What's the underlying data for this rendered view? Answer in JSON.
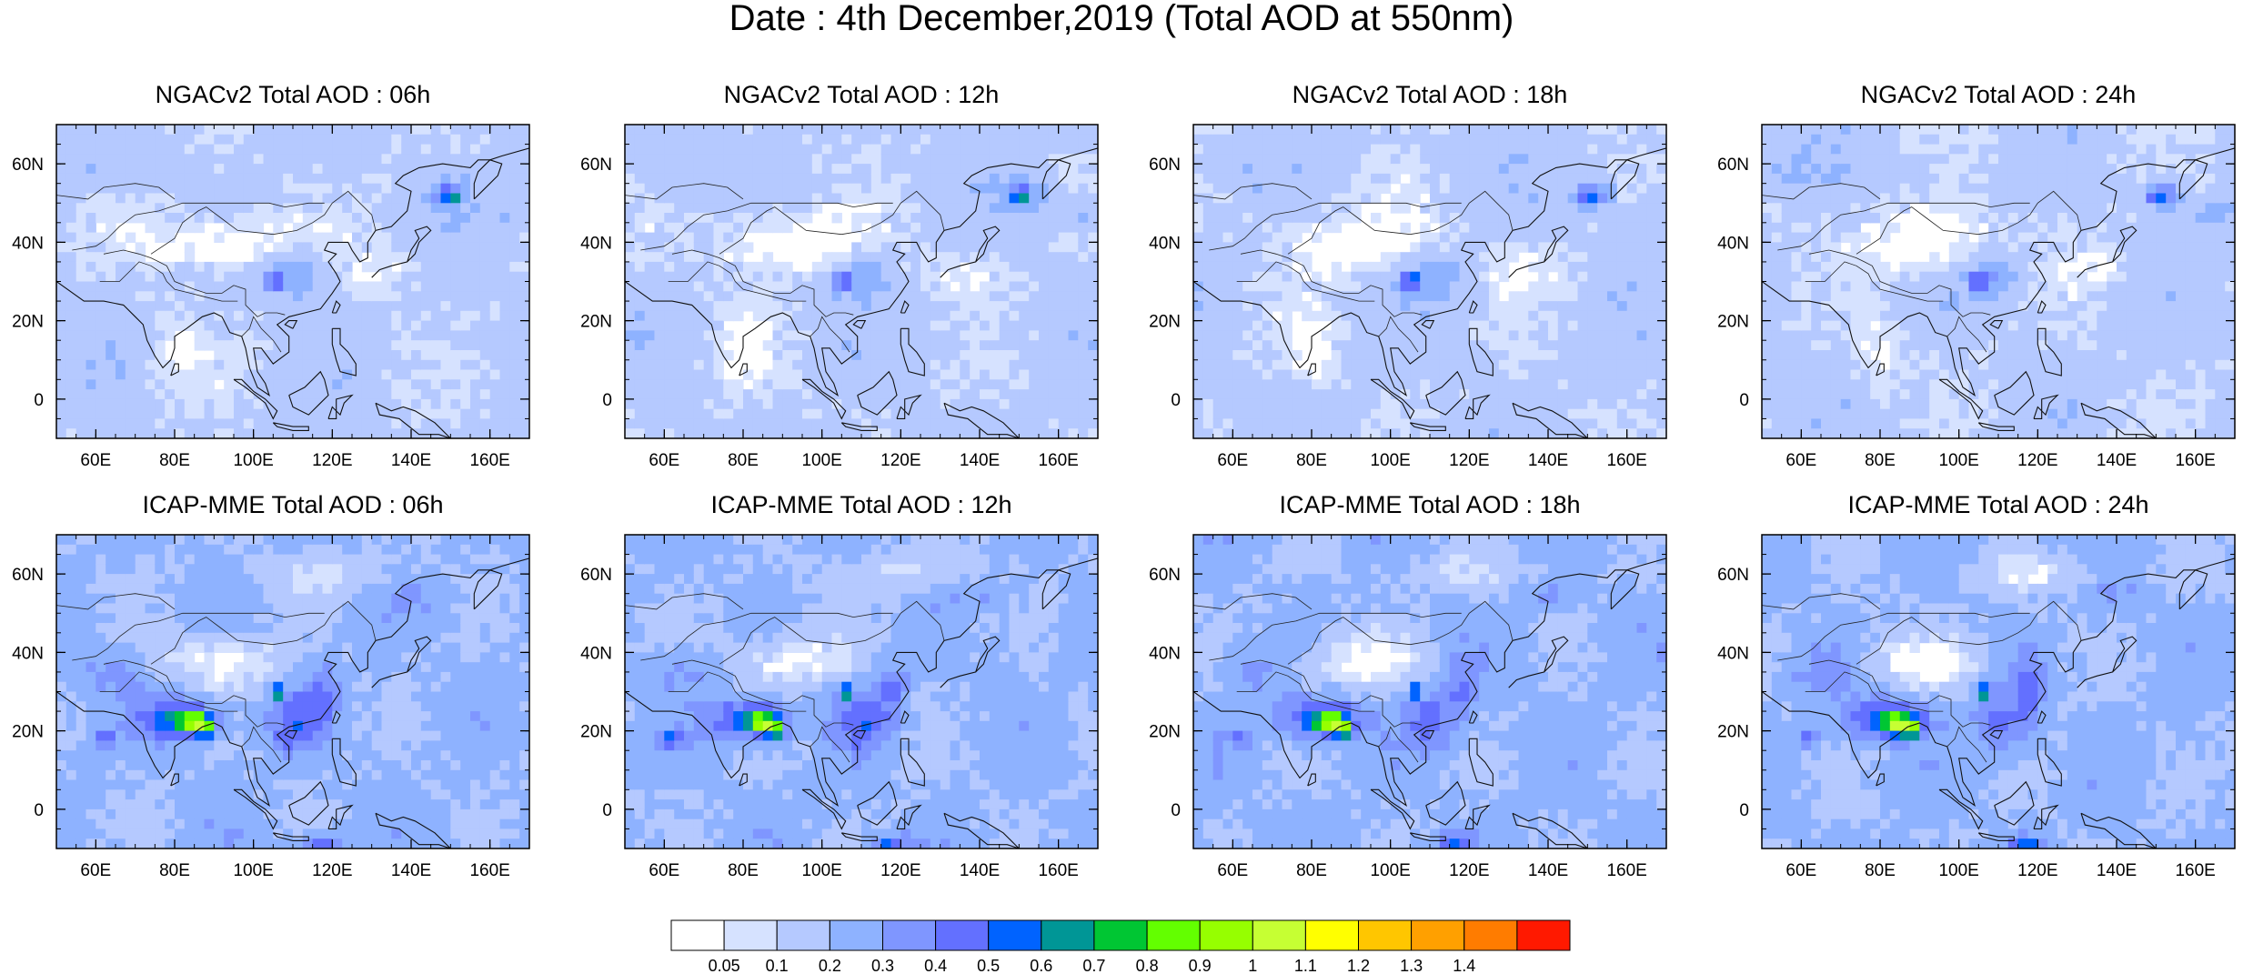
{
  "title": "Date : 4th December,2019 (Total AOD at 550nm)",
  "axes": {
    "lon_ticks": [
      "60E",
      "80E",
      "100E",
      "120E",
      "140E",
      "160E"
    ],
    "lat_ticks": [
      "60N",
      "40N",
      "20N",
      "0"
    ]
  },
  "map_extent": {
    "lon_min": 50,
    "lon_max": 170,
    "lat_min": -10,
    "lat_max": 70
  },
  "panels": [
    {
      "title": "NGACv2 Total AOD : 06h",
      "model": "NGAC",
      "hour": 6
    },
    {
      "title": "NGACv2 Total AOD : 12h",
      "model": "NGAC",
      "hour": 12
    },
    {
      "title": "NGACv2 Total AOD : 18h",
      "model": "NGAC",
      "hour": 18
    },
    {
      "title": "NGACv2 Total AOD : 24h",
      "model": "NGAC",
      "hour": 24
    },
    {
      "title": "ICAP-MME Total AOD : 06h",
      "model": "ICAP",
      "hour": 6
    },
    {
      "title": "ICAP-MME Total AOD : 12h",
      "model": "ICAP",
      "hour": 12
    },
    {
      "title": "ICAP-MME Total AOD : 18h",
      "model": "ICAP",
      "hour": 18
    },
    {
      "title": "ICAP-MME Total AOD : 24h",
      "model": "ICAP",
      "hour": 24
    }
  ],
  "colorbar": {
    "levels": [
      "0.05",
      "0.1",
      "0.2",
      "0.3",
      "0.4",
      "0.5",
      "0.6",
      "0.7",
      "0.8",
      "0.9",
      "1",
      "1.1",
      "1.2",
      "1.3",
      "1.4"
    ],
    "colors": [
      "#ffffff",
      "#d6e2ff",
      "#b5c9ff",
      "#8eb2ff",
      "#7f96ff",
      "#6370ff",
      "#0063ff",
      "#009696",
      "#00c633",
      "#63ff00",
      "#96ff00",
      "#c6ff33",
      "#ffff00",
      "#ffc600",
      "#ffa000",
      "#ff7c00",
      "#ff1900"
    ]
  }
}
